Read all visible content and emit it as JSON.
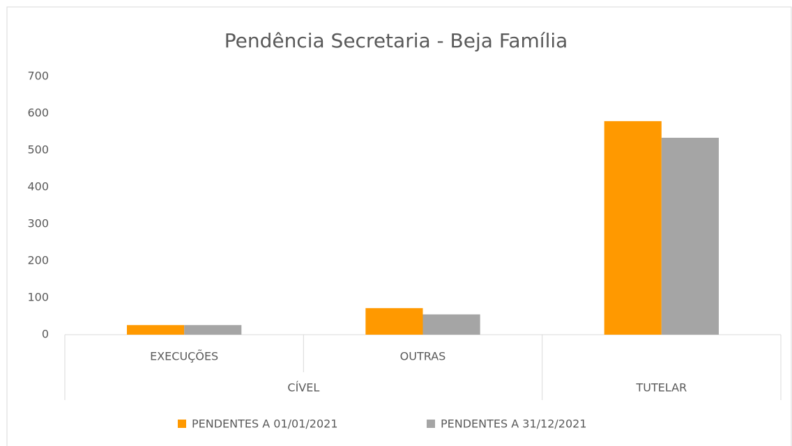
{
  "chart_data": {
    "type": "bar",
    "title": "Pendência Secretaria - Beja Família",
    "categories": [
      "EXECUÇÕES",
      "OUTRAS",
      null
    ],
    "groups": [
      {
        "name": "CÍVEL",
        "count": 2
      },
      {
        "name": "TUTELAR",
        "count": 1
      }
    ],
    "series": [
      {
        "name": "PENDENTES A 01/01/2021",
        "color": "#ff9900",
        "values": [
          26,
          72,
          579
        ]
      },
      {
        "name": "PENDENTES A 31/12/2021",
        "color": "#a5a5a5",
        "values": [
          26,
          55,
          534
        ]
      }
    ],
    "ylim": [
      0,
      700
    ],
    "yticks": [
      0,
      100,
      200,
      300,
      400,
      500,
      600,
      700
    ],
    "grid": false,
    "legend": "bottom"
  }
}
